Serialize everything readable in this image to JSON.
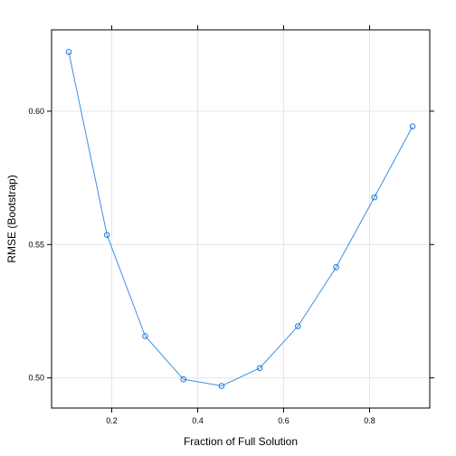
{
  "chart_data": {
    "type": "line",
    "xlabel": "Fraction of Full Solution",
    "ylabel": "RMSE (Bootstrap)",
    "x": [
      0.1,
      0.1889,
      0.2778,
      0.3667,
      0.4556,
      0.5444,
      0.6333,
      0.7222,
      0.8111,
      0.9
    ],
    "series": [
      {
        "values": [
          0.6222,
          0.5536,
          0.5157,
          0.4995,
          0.497,
          0.5037,
          0.5194,
          0.5415,
          0.5677,
          0.5943
        ]
      }
    ],
    "xlim": [
      0.06,
      0.94
    ],
    "ylim": [
      0.4887,
      0.6305
    ],
    "xticks": [
      0.2,
      0.4,
      0.6,
      0.8
    ],
    "xtick_labels": [
      "0.2",
      "0.4",
      "0.6",
      "0.8"
    ],
    "yticks": [
      0.5,
      0.55,
      0.6
    ],
    "ytick_labels": [
      "0.50",
      "0.55",
      "0.60"
    ],
    "grid": true,
    "colors": {
      "line": "#3a8fe8",
      "point": "#1f77e0",
      "grid": "#e6e6e6"
    }
  }
}
